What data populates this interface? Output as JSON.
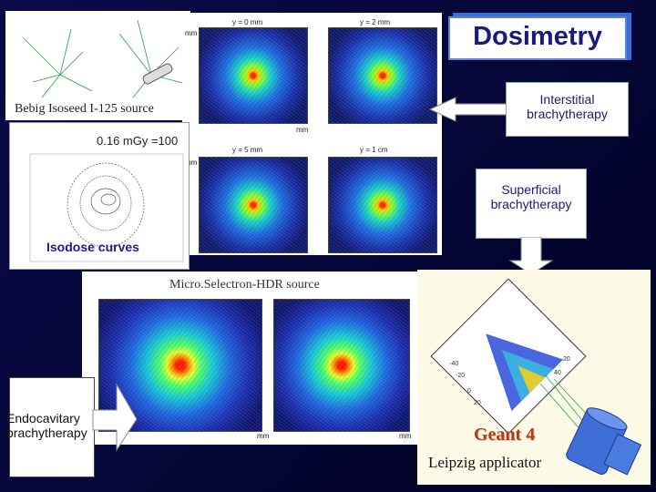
{
  "title": "Dosimetry",
  "labels": {
    "bebig_source": "Bebig Isoseed I-125 source",
    "dose_rate": "0.16 mGy =100",
    "isodose": "Isodose curves",
    "microselectron": "Micro.Selectron-HDR source",
    "interstitial_line1": "Interstitial",
    "interstitial_line2": "brachytherapy",
    "superficial_line1": "Superficial",
    "superficial_line2": "brachytherapy",
    "endocavitary_line1": "Endocavitary",
    "endocavitary_line2": "brachytherapy",
    "geant": "Geant 4",
    "leipzig": "Leipzig applicator"
  },
  "plots": {
    "y0": "y = 0 mm",
    "y2": "y = 2 mm",
    "y5": "y = 5 mm",
    "y1cm": "y = 1 cm",
    "mm": "mm"
  },
  "colors": {
    "background": "#0a0a4a",
    "title_text": "#1a1a7a",
    "isodose_text": "#1a1a9a",
    "geant_text": "#b8361a"
  }
}
